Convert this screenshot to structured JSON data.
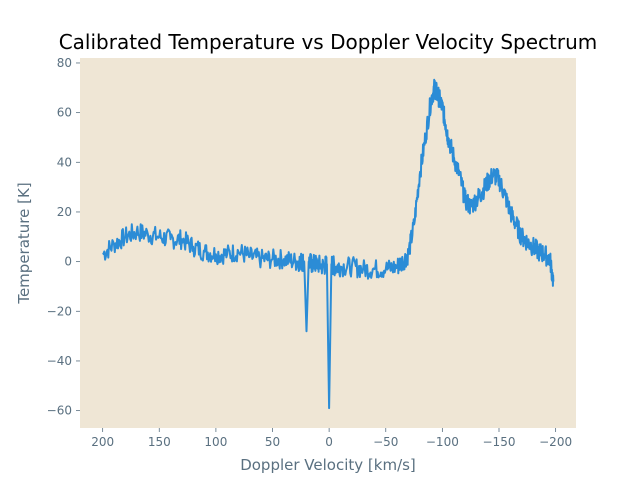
{
  "chart_data": {
    "type": "line",
    "title": "Calibrated Temperature vs Doppler Velocity Spectrum",
    "xlabel": "Doppler Velocity [km/s]",
    "ylabel": "Temperature [K]",
    "xlim": [
      220,
      -218
    ],
    "ylim": [
      -67,
      82
    ],
    "x_inverted": true,
    "grid": false,
    "legend": "none",
    "colors": {
      "line": "#2b8cd6",
      "plot_bg": "#efe6d5",
      "axis_text": "#5a7080"
    },
    "x_ticks": [
      {
        "value": 200,
        "label": "200"
      },
      {
        "value": 150,
        "label": "150"
      },
      {
        "value": 100,
        "label": "100"
      },
      {
        "value": 50,
        "label": "50"
      },
      {
        "value": 0,
        "label": "0"
      },
      {
        "value": -50,
        "label": "−50"
      },
      {
        "value": -100,
        "label": "−100"
      },
      {
        "value": -150,
        "label": "−150"
      },
      {
        "value": -200,
        "label": "−200"
      }
    ],
    "y_ticks": [
      {
        "value": 80,
        "label": "80"
      },
      {
        "value": 60,
        "label": "60"
      },
      {
        "value": 40,
        "label": "40"
      },
      {
        "value": 20,
        "label": "20"
      },
      {
        "value": 0,
        "label": "0"
      },
      {
        "value": -20,
        "label": "−20"
      },
      {
        "value": -40,
        "label": "−40"
      },
      {
        "value": -60,
        "label": "−60"
      }
    ],
    "series": [
      {
        "x": [
          200,
          190,
          180,
          170,
          160,
          150,
          140,
          130,
          120,
          110,
          100,
          90,
          80,
          70,
          60,
          50,
          40,
          30,
          25,
          22,
          20,
          18,
          15,
          10,
          5,
          2,
          0,
          -2,
          -5,
          -10,
          -20,
          -30,
          -40,
          -50,
          -60,
          -65,
          -70,
          -75,
          -80,
          -85,
          -90,
          -93,
          -95,
          -97,
          -100,
          -103,
          -105,
          -110,
          -115,
          -120,
          -125,
          -130,
          -135,
          -140,
          -145,
          -150,
          -155,
          -160,
          -165,
          -170,
          -175,
          -180,
          -185,
          -190,
          -195,
          -198
        ],
        "y": [
          3,
          7,
          10,
          12,
          11,
          10,
          9,
          9,
          6,
          4,
          3,
          3,
          4,
          2,
          1,
          1,
          1,
          0,
          0,
          0,
          -28,
          0,
          -1,
          -1,
          -2,
          -1,
          -59,
          -1,
          -2,
          -2,
          -2,
          -3,
          -3,
          -3,
          -2,
          0,
          3,
          15,
          35,
          50,
          65,
          70,
          68,
          66,
          62,
          55,
          50,
          42,
          35,
          25,
          22,
          25,
          28,
          32,
          35,
          33,
          27,
          20,
          15,
          10,
          8,
          6,
          4,
          3,
          1,
          -8
        ],
        "noise_k": 4
      }
    ]
  }
}
